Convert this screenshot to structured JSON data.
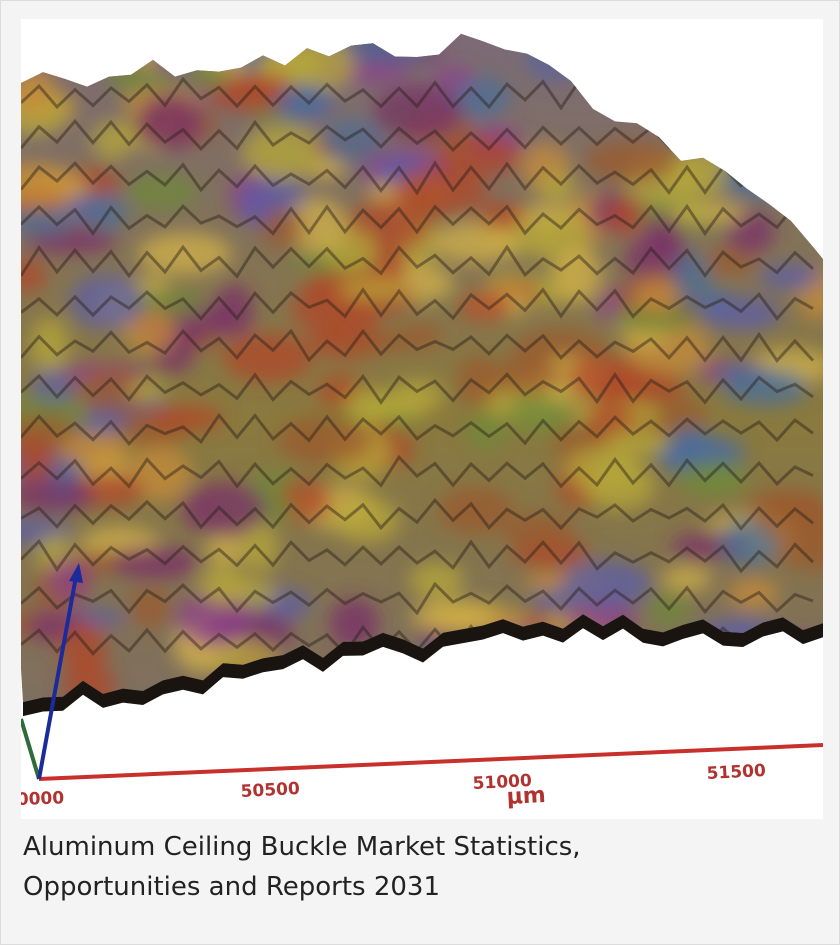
{
  "image": {
    "axis_labels": [
      "0000",
      "50500",
      "51000",
      "51500"
    ],
    "unit": "µm"
  },
  "caption": "Aluminum Ceiling Buckle Market Statistics, Opportunities and Reports 2031"
}
